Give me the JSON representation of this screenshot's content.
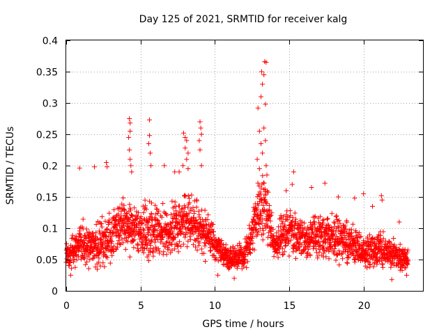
{
  "chart_data": {
    "type": "scatter",
    "title": "Day 125 of 2021, SRMTID for receiver kalg",
    "xlabel": "GPS time / hours",
    "ylabel": "SRMTID / TECUs",
    "xlim": [
      0,
      24
    ],
    "ylim": [
      0,
      0.4
    ],
    "xticks": [
      0,
      5,
      10,
      15,
      20
    ],
    "xtick_labels": [
      "0",
      "5",
      "10",
      "15",
      "20"
    ],
    "yticks": [
      0,
      0.05,
      0.1,
      0.15,
      0.2,
      0.25,
      0.3,
      0.35,
      0.4
    ],
    "ytick_labels": [
      "0",
      "0.05",
      "0.1",
      "0.15",
      "0.2",
      "0.25",
      "0.3",
      "0.35",
      "0.4"
    ],
    "grid": true,
    "marker": "+",
    "color": "#ff0000",
    "x_range_of_data": [
      0,
      23
    ],
    "trend": [
      {
        "x": 0.0,
        "y": 0.055,
        "spread": 0.02
      },
      {
        "x": 1.0,
        "y": 0.075,
        "spread": 0.035
      },
      {
        "x": 2.0,
        "y": 0.07,
        "spread": 0.04
      },
      {
        "x": 3.0,
        "y": 0.09,
        "spread": 0.045
      },
      {
        "x": 4.0,
        "y": 0.105,
        "spread": 0.05
      },
      {
        "x": 5.0,
        "y": 0.095,
        "spread": 0.045
      },
      {
        "x": 6.0,
        "y": 0.095,
        "spread": 0.05
      },
      {
        "x": 7.0,
        "y": 0.09,
        "spread": 0.045
      },
      {
        "x": 8.0,
        "y": 0.115,
        "spread": 0.05
      },
      {
        "x": 9.0,
        "y": 0.1,
        "spread": 0.045
      },
      {
        "x": 10.0,
        "y": 0.075,
        "spread": 0.03
      },
      {
        "x": 11.0,
        "y": 0.05,
        "spread": 0.02
      },
      {
        "x": 12.0,
        "y": 0.055,
        "spread": 0.025
      },
      {
        "x": 12.8,
        "y": 0.12,
        "spread": 0.05
      },
      {
        "x": 13.3,
        "y": 0.14,
        "spread": 0.06
      },
      {
        "x": 14.0,
        "y": 0.075,
        "spread": 0.035
      },
      {
        "x": 15.0,
        "y": 0.1,
        "spread": 0.045
      },
      {
        "x": 16.0,
        "y": 0.08,
        "spread": 0.035
      },
      {
        "x": 17.0,
        "y": 0.09,
        "spread": 0.04
      },
      {
        "x": 18.0,
        "y": 0.085,
        "spread": 0.04
      },
      {
        "x": 19.0,
        "y": 0.08,
        "spread": 0.04
      },
      {
        "x": 20.0,
        "y": 0.06,
        "spread": 0.025
      },
      {
        "x": 21.0,
        "y": 0.07,
        "spread": 0.035
      },
      {
        "x": 22.0,
        "y": 0.055,
        "spread": 0.025
      },
      {
        "x": 23.0,
        "y": 0.05,
        "spread": 0.02
      }
    ],
    "notable_points": [
      {
        "x": 4.25,
        "y": 0.275
      },
      {
        "x": 4.3,
        "y": 0.268
      },
      {
        "x": 4.3,
        "y": 0.255
      },
      {
        "x": 4.2,
        "y": 0.245
      },
      {
        "x": 4.25,
        "y": 0.225
      },
      {
        "x": 4.3,
        "y": 0.21
      },
      {
        "x": 4.35,
        "y": 0.2
      },
      {
        "x": 4.4,
        "y": 0.19
      },
      {
        "x": 5.6,
        "y": 0.273
      },
      {
        "x": 5.6,
        "y": 0.248
      },
      {
        "x": 5.55,
        "y": 0.235
      },
      {
        "x": 5.65,
        "y": 0.22
      },
      {
        "x": 5.7,
        "y": 0.2
      },
      {
        "x": 7.9,
        "y": 0.252
      },
      {
        "x": 8.0,
        "y": 0.245
      },
      {
        "x": 8.1,
        "y": 0.24
      },
      {
        "x": 8.0,
        "y": 0.228
      },
      {
        "x": 8.2,
        "y": 0.22
      },
      {
        "x": 8.1,
        "y": 0.21
      },
      {
        "x": 7.85,
        "y": 0.2
      },
      {
        "x": 8.2,
        "y": 0.195
      },
      {
        "x": 7.6,
        "y": 0.19
      },
      {
        "x": 9.0,
        "y": 0.27
      },
      {
        "x": 9.05,
        "y": 0.26
      },
      {
        "x": 9.1,
        "y": 0.25
      },
      {
        "x": 8.95,
        "y": 0.24
      },
      {
        "x": 9.0,
        "y": 0.225
      },
      {
        "x": 9.1,
        "y": 0.2
      },
      {
        "x": 12.9,
        "y": 0.292
      },
      {
        "x": 13.0,
        "y": 0.255
      },
      {
        "x": 13.1,
        "y": 0.31
      },
      {
        "x": 13.15,
        "y": 0.35
      },
      {
        "x": 13.2,
        "y": 0.33
      },
      {
        "x": 13.3,
        "y": 0.345
      },
      {
        "x": 13.35,
        "y": 0.366
      },
      {
        "x": 13.45,
        "y": 0.365
      },
      {
        "x": 13.4,
        "y": 0.298
      },
      {
        "x": 13.3,
        "y": 0.26
      },
      {
        "x": 13.4,
        "y": 0.24
      },
      {
        "x": 13.1,
        "y": 0.235
      },
      {
        "x": 13.2,
        "y": 0.22
      },
      {
        "x": 12.85,
        "y": 0.21
      },
      {
        "x": 13.45,
        "y": 0.2
      },
      {
        "x": 13.0,
        "y": 0.195
      },
      {
        "x": 13.5,
        "y": 0.185
      },
      {
        "x": 15.3,
        "y": 0.19
      },
      {
        "x": 15.2,
        "y": 0.17
      },
      {
        "x": 14.8,
        "y": 0.16
      },
      {
        "x": 2.7,
        "y": 0.205
      },
      {
        "x": 2.75,
        "y": 0.198
      },
      {
        "x": 0.9,
        "y": 0.196
      },
      {
        "x": 1.9,
        "y": 0.198
      },
      {
        "x": 6.6,
        "y": 0.2
      },
      {
        "x": 7.3,
        "y": 0.19
      },
      {
        "x": 17.4,
        "y": 0.172
      },
      {
        "x": 16.5,
        "y": 0.165
      },
      {
        "x": 20.0,
        "y": 0.155
      },
      {
        "x": 20.6,
        "y": 0.135
      },
      {
        "x": 21.2,
        "y": 0.152
      },
      {
        "x": 21.25,
        "y": 0.145
      },
      {
        "x": 18.3,
        "y": 0.15
      },
      {
        "x": 19.4,
        "y": 0.148
      },
      {
        "x": 22.4,
        "y": 0.11
      },
      {
        "x": 10.2,
        "y": 0.025
      },
      {
        "x": 11.3,
        "y": 0.02
      },
      {
        "x": 21.9,
        "y": 0.018
      },
      {
        "x": 22.9,
        "y": 0.025
      },
      {
        "x": 0.3,
        "y": 0.025
      }
    ]
  }
}
